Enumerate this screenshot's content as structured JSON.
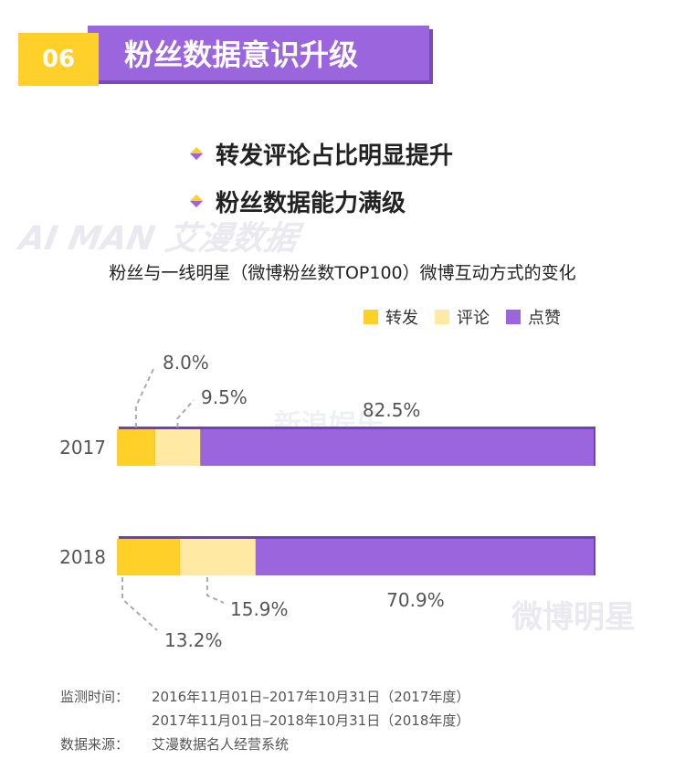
{
  "section": {
    "number": "06",
    "title": "粉丝数据意识升级"
  },
  "highlights": [
    {
      "text": "转发评论占比明显提升"
    },
    {
      "text": "粉丝数据能力满级"
    }
  ],
  "watermarks": {
    "brand": "AI MAN 艾漫数据",
    "weibo_star": "微博明星",
    "weibo_ent": "新浪娱乐"
  },
  "chart_data": {
    "type": "bar",
    "orientation": "horizontal",
    "stacked": true,
    "title": "粉丝与一线明星（微博粉丝数TOP100）微博互动方式的变化",
    "categories": [
      "2017",
      "2018"
    ],
    "series": [
      {
        "name": "转发",
        "color": "#ffd02a",
        "values": [
          8.0,
          13.2
        ],
        "labels": [
          "8.0%",
          "13.2%"
        ]
      },
      {
        "name": "评论",
        "color": "#ffe9a3",
        "values": [
          9.5,
          15.9
        ],
        "labels": [
          "9.5%",
          "15.9%"
        ]
      },
      {
        "name": "点赞",
        "color": "#9b65dd",
        "values": [
          82.5,
          70.9
        ],
        "labels": [
          "82.5%",
          "70.9%"
        ]
      }
    ],
    "xlim": [
      0,
      100
    ],
    "legend": "top-right",
    "grid": false
  },
  "colors": {
    "accent_yellow": "#ffd02a",
    "accent_purple": "#9b65dd",
    "purple_edge": "#6f3fbf"
  },
  "source": {
    "monitor_label": "监测时间：",
    "monitor_lines": [
      "2016年11月01日–2017年10月31日（2017年度）",
      "2017年11月01日–2018年10月31日（2018年度）"
    ],
    "data_label": "数据来源：",
    "data_value": "艾漫数据名人经营系统"
  }
}
